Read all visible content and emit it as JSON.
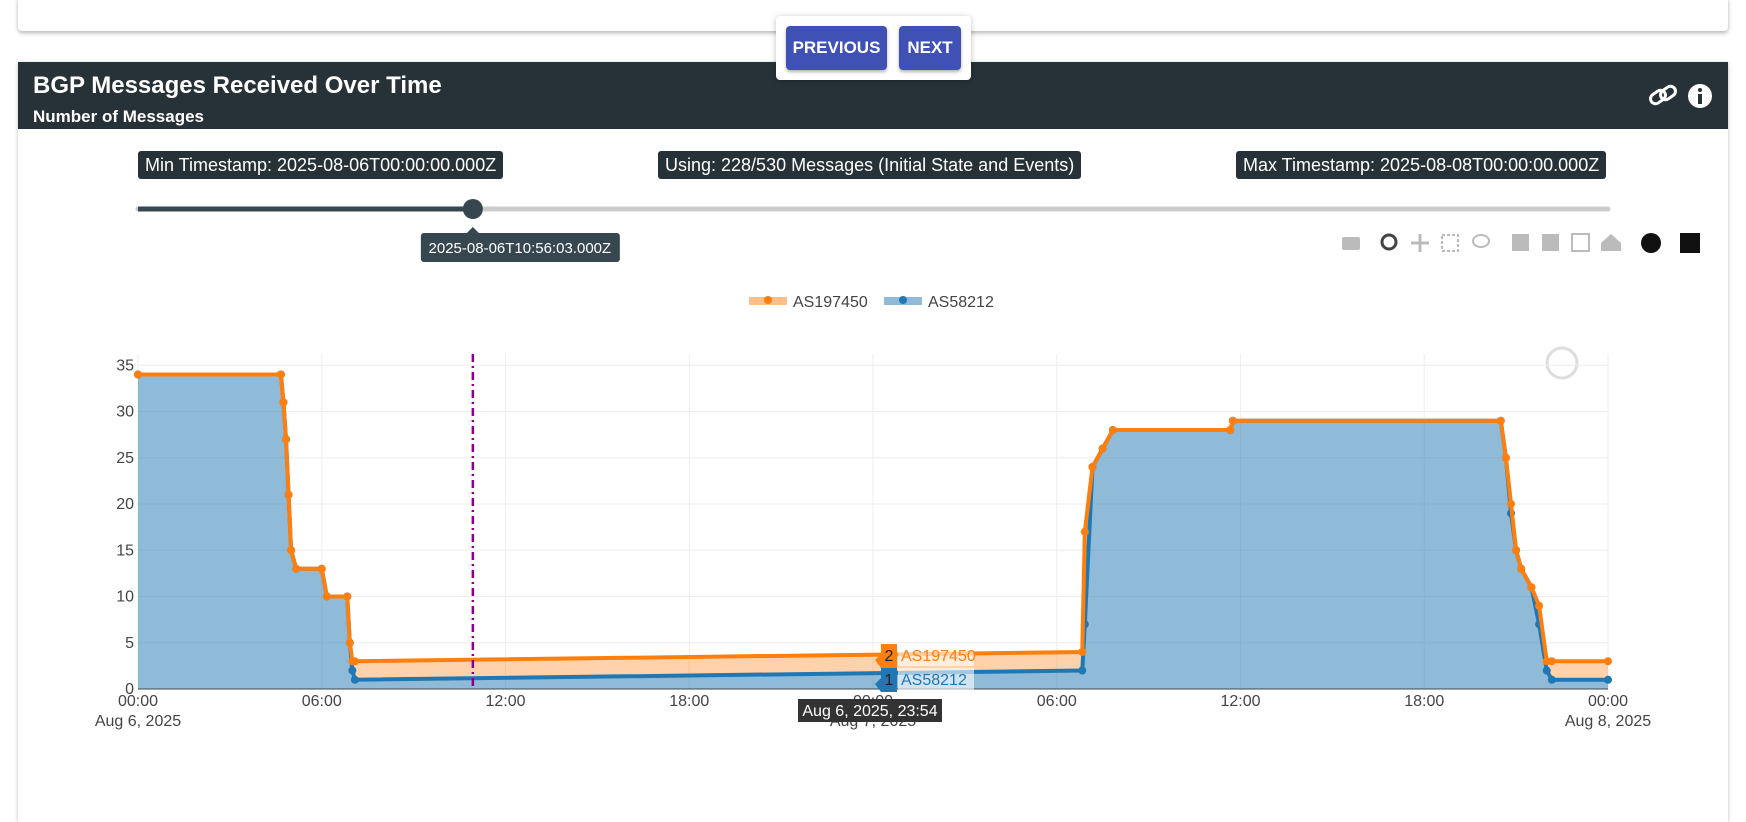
{
  "buttons": {
    "previous": "PREVIOUS",
    "next": "NEXT"
  },
  "header": {
    "title": "BGP Messages Received Over Time",
    "subtitle": "Number of Messages"
  },
  "info": {
    "min": "Min Timestamp: 2025-08-06T00:00:00.000Z",
    "using": "Using: 228/530 Messages (Initial State and Events)",
    "max": "Max Timestamp: 2025-08-08T00:00:00.000Z"
  },
  "slider": {
    "value_label": "2025-08-06T10:56:03.000Z"
  },
  "chart_data": {
    "type": "stacked-area",
    "stacked": true,
    "x": [
      "2025-08-06T00:00",
      "2025-08-06T04:40",
      "2025-08-06T04:45",
      "2025-08-06T04:50",
      "2025-08-06T04:55",
      "2025-08-06T05:00",
      "2025-08-06T05:10",
      "2025-08-06T06:00",
      "2025-08-06T06:10",
      "2025-08-06T06:50",
      "2025-08-06T06:55",
      "2025-08-06T07:00",
      "2025-08-06T07:05",
      "2025-08-07T06:50",
      "2025-08-07T06:55",
      "2025-08-07T07:10",
      "2025-08-07T07:30",
      "2025-08-07T07:50",
      "2025-08-07T11:40",
      "2025-08-07T11:45",
      "2025-08-07T20:30",
      "2025-08-07T20:40",
      "2025-08-07T20:50",
      "2025-08-07T21:00",
      "2025-08-07T21:10",
      "2025-08-07T21:30",
      "2025-08-07T21:45",
      "2025-08-07T22:00",
      "2025-08-07T22:10",
      "2025-08-08T00:00"
    ],
    "series": [
      {
        "name": "AS197450",
        "color": "#ff7f0e",
        "values": [
          0,
          0,
          0,
          0,
          0,
          0,
          0,
          0,
          0,
          0,
          0,
          1,
          2,
          2,
          10,
          0,
          0,
          0,
          0,
          0,
          0,
          0,
          1,
          0,
          0,
          0,
          2,
          1,
          2,
          2
        ]
      },
      {
        "name": "AS58212",
        "color": "#1f77b4",
        "values": [
          34,
          34,
          31,
          27,
          21,
          15,
          13,
          13,
          10,
          10,
          5,
          2,
          1,
          2,
          7,
          24,
          26,
          28,
          28,
          29,
          29,
          25,
          19,
          15,
          13,
          11,
          7,
          2,
          1,
          1
        ]
      }
    ],
    "xlim": [
      "2025-08-06T00:00",
      "2025-08-08T00:00"
    ],
    "xticks": [
      {
        "value": "2025-08-06T00:00",
        "label": "00:00"
      },
      {
        "value": "2025-08-06T06:00",
        "label": "06:00"
      },
      {
        "value": "2025-08-06T12:00",
        "label": "12:00"
      },
      {
        "value": "2025-08-06T18:00",
        "label": "18:00"
      },
      {
        "value": "2025-08-07T00:00",
        "label": "00:00"
      },
      {
        "value": "2025-08-07T06:00",
        "label": "06:00"
      },
      {
        "value": "2025-08-07T12:00",
        "label": "12:00"
      },
      {
        "value": "2025-08-07T18:00",
        "label": "18:00"
      },
      {
        "value": "2025-08-08T00:00",
        "label": "00:00"
      }
    ],
    "xtick_dates": [
      {
        "value": "2025-08-06T00:00",
        "label": "Aug 6, 2025"
      },
      {
        "value": "2025-08-07T00:00",
        "label": "Aug 7, 2025"
      },
      {
        "value": "2025-08-08T00:00",
        "label": "Aug 8, 2025"
      }
    ],
    "ylim": [
      0,
      36
    ],
    "yticks": [
      0,
      5,
      10,
      15,
      20,
      25,
      30,
      35
    ],
    "grid": true,
    "hover": {
      "x_label": "Aug 6, 2025, 23:54",
      "values": [
        2,
        1
      ]
    }
  }
}
